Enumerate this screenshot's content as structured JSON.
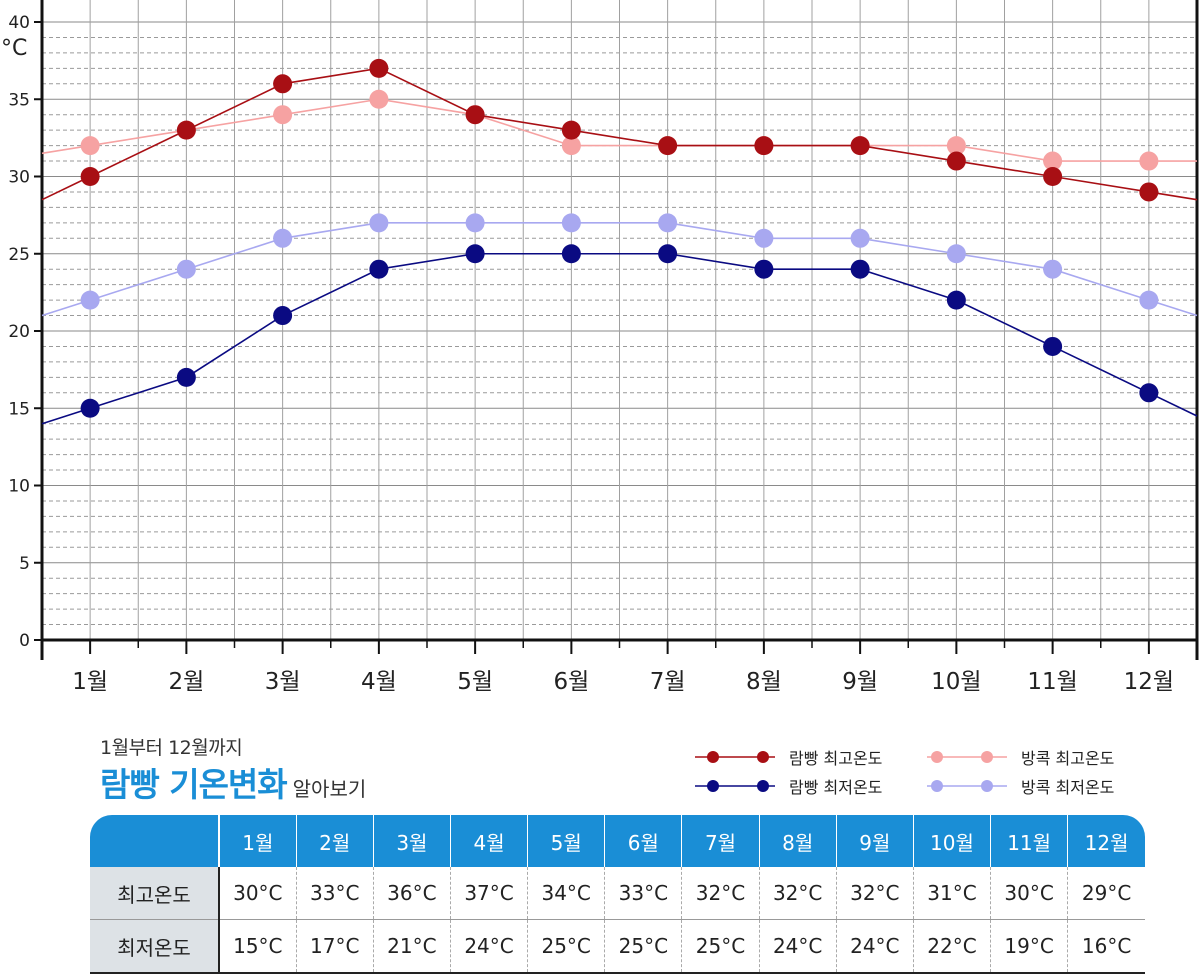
{
  "chart_data": {
    "type": "line",
    "categories": [
      "1월",
      "2월",
      "3월",
      "4월",
      "5월",
      "6월",
      "7월",
      "8월",
      "9월",
      "10월",
      "11월",
      "12월"
    ],
    "series": [
      {
        "name": "방콕 최고온도",
        "color": "#f6a2a2",
        "values": [
          32,
          33,
          34,
          35,
          34,
          32,
          32,
          32,
          32,
          32,
          31,
          31
        ]
      },
      {
        "name": "방콕 최저온도",
        "color": "#a8a8f0",
        "values": [
          22,
          24,
          26,
          27,
          27,
          27,
          27,
          26,
          26,
          25,
          24,
          22
        ]
      },
      {
        "name": "람빵 최고온도",
        "color": "#a80f14",
        "values": [
          30,
          33,
          36,
          37,
          34,
          33,
          32,
          32,
          32,
          31,
          30,
          29
        ]
      },
      {
        "name": "람빵 최저온도",
        "color": "#0a0a82",
        "values": [
          15,
          17,
          21,
          24,
          25,
          25,
          25,
          24,
          24,
          22,
          19,
          16
        ]
      }
    ],
    "yticks": [
      "0",
      "5",
      "10",
      "15",
      "20",
      "25",
      "30",
      "35",
      "40"
    ],
    "ylim": [
      0,
      40
    ],
    "yunit": "°C",
    "grid": true
  },
  "caption": {
    "subtitle": "1월부터 12월까지",
    "title": "람빵 기온변화",
    "title_suffix": "알아보기"
  },
  "legend": {
    "lampang_high": "람빵 최고온도",
    "lampang_low": "람빵 최저온도",
    "bangkok_high": "방콕 최고온도",
    "bangkok_low": "방콕 최저온도"
  },
  "table": {
    "header": [
      "1월",
      "2월",
      "3월",
      "4월",
      "5월",
      "6월",
      "7월",
      "8월",
      "9월",
      "10월",
      "11월",
      "12월"
    ],
    "rows": [
      {
        "label": "최고온도",
        "values": [
          "30°C",
          "33°C",
          "36°C",
          "37°C",
          "34°C",
          "33°C",
          "32°C",
          "32°C",
          "32°C",
          "31°C",
          "30°C",
          "29°C"
        ]
      },
      {
        "label": "최저온도",
        "values": [
          "15°C",
          "17°C",
          "21°C",
          "24°C",
          "25°C",
          "25°C",
          "25°C",
          "24°C",
          "24°C",
          "22°C",
          "19°C",
          "16°C"
        ]
      }
    ]
  },
  "colors": {
    "accent_blue": "#1a8ed6",
    "row_head_bg": "#dde2e6"
  }
}
